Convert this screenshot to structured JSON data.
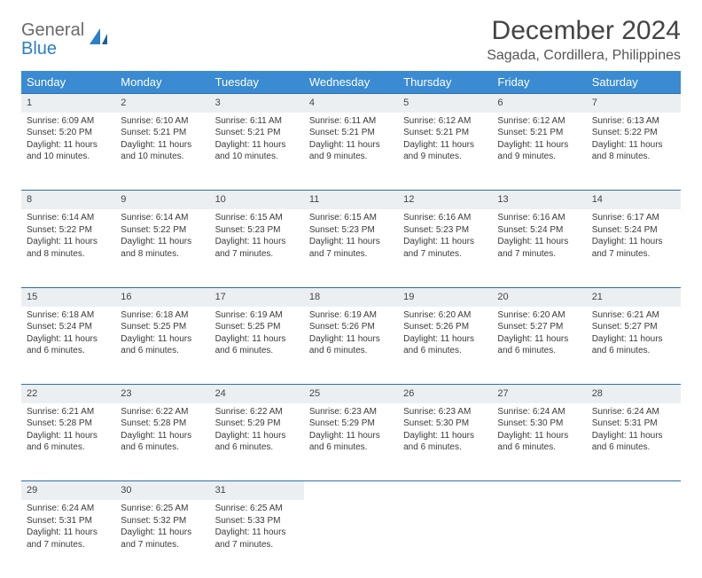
{
  "brand": {
    "word1": "General",
    "word2": "Blue"
  },
  "title": "December 2024",
  "location": "Sagada, Cordillera, Philippines",
  "colors": {
    "header_bg": "#3a8bd1",
    "header_text": "#ffffff",
    "row_border": "#2f6fa7",
    "daynum_bg": "#eceff2",
    "text": "#333333",
    "logo_gray": "#6a6a6a",
    "logo_blue": "#2a7fc9"
  },
  "dayHeaders": [
    "Sunday",
    "Monday",
    "Tuesday",
    "Wednesday",
    "Thursday",
    "Friday",
    "Saturday"
  ],
  "weeks": [
    [
      {
        "n": "1",
        "sr": "6:09 AM",
        "ss": "5:20 PM",
        "dl": "11 hours and 10 minutes."
      },
      {
        "n": "2",
        "sr": "6:10 AM",
        "ss": "5:21 PM",
        "dl": "11 hours and 10 minutes."
      },
      {
        "n": "3",
        "sr": "6:11 AM",
        "ss": "5:21 PM",
        "dl": "11 hours and 10 minutes."
      },
      {
        "n": "4",
        "sr": "6:11 AM",
        "ss": "5:21 PM",
        "dl": "11 hours and 9 minutes."
      },
      {
        "n": "5",
        "sr": "6:12 AM",
        "ss": "5:21 PM",
        "dl": "11 hours and 9 minutes."
      },
      {
        "n": "6",
        "sr": "6:12 AM",
        "ss": "5:21 PM",
        "dl": "11 hours and 9 minutes."
      },
      {
        "n": "7",
        "sr": "6:13 AM",
        "ss": "5:22 PM",
        "dl": "11 hours and 8 minutes."
      }
    ],
    [
      {
        "n": "8",
        "sr": "6:14 AM",
        "ss": "5:22 PM",
        "dl": "11 hours and 8 minutes."
      },
      {
        "n": "9",
        "sr": "6:14 AM",
        "ss": "5:22 PM",
        "dl": "11 hours and 8 minutes."
      },
      {
        "n": "10",
        "sr": "6:15 AM",
        "ss": "5:23 PM",
        "dl": "11 hours and 7 minutes."
      },
      {
        "n": "11",
        "sr": "6:15 AM",
        "ss": "5:23 PM",
        "dl": "11 hours and 7 minutes."
      },
      {
        "n": "12",
        "sr": "6:16 AM",
        "ss": "5:23 PM",
        "dl": "11 hours and 7 minutes."
      },
      {
        "n": "13",
        "sr": "6:16 AM",
        "ss": "5:24 PM",
        "dl": "11 hours and 7 minutes."
      },
      {
        "n": "14",
        "sr": "6:17 AM",
        "ss": "5:24 PM",
        "dl": "11 hours and 7 minutes."
      }
    ],
    [
      {
        "n": "15",
        "sr": "6:18 AM",
        "ss": "5:24 PM",
        "dl": "11 hours and 6 minutes."
      },
      {
        "n": "16",
        "sr": "6:18 AM",
        "ss": "5:25 PM",
        "dl": "11 hours and 6 minutes."
      },
      {
        "n": "17",
        "sr": "6:19 AM",
        "ss": "5:25 PM",
        "dl": "11 hours and 6 minutes."
      },
      {
        "n": "18",
        "sr": "6:19 AM",
        "ss": "5:26 PM",
        "dl": "11 hours and 6 minutes."
      },
      {
        "n": "19",
        "sr": "6:20 AM",
        "ss": "5:26 PM",
        "dl": "11 hours and 6 minutes."
      },
      {
        "n": "20",
        "sr": "6:20 AM",
        "ss": "5:27 PM",
        "dl": "11 hours and 6 minutes."
      },
      {
        "n": "21",
        "sr": "6:21 AM",
        "ss": "5:27 PM",
        "dl": "11 hours and 6 minutes."
      }
    ],
    [
      {
        "n": "22",
        "sr": "6:21 AM",
        "ss": "5:28 PM",
        "dl": "11 hours and 6 minutes."
      },
      {
        "n": "23",
        "sr": "6:22 AM",
        "ss": "5:28 PM",
        "dl": "11 hours and 6 minutes."
      },
      {
        "n": "24",
        "sr": "6:22 AM",
        "ss": "5:29 PM",
        "dl": "11 hours and 6 minutes."
      },
      {
        "n": "25",
        "sr": "6:23 AM",
        "ss": "5:29 PM",
        "dl": "11 hours and 6 minutes."
      },
      {
        "n": "26",
        "sr": "6:23 AM",
        "ss": "5:30 PM",
        "dl": "11 hours and 6 minutes."
      },
      {
        "n": "27",
        "sr": "6:24 AM",
        "ss": "5:30 PM",
        "dl": "11 hours and 6 minutes."
      },
      {
        "n": "28",
        "sr": "6:24 AM",
        "ss": "5:31 PM",
        "dl": "11 hours and 6 minutes."
      }
    ],
    [
      {
        "n": "29",
        "sr": "6:24 AM",
        "ss": "5:31 PM",
        "dl": "11 hours and 7 minutes."
      },
      {
        "n": "30",
        "sr": "6:25 AM",
        "ss": "5:32 PM",
        "dl": "11 hours and 7 minutes."
      },
      {
        "n": "31",
        "sr": "6:25 AM",
        "ss": "5:33 PM",
        "dl": "11 hours and 7 minutes."
      },
      null,
      null,
      null,
      null
    ]
  ],
  "labels": {
    "sunrise": "Sunrise:",
    "sunset": "Sunset:",
    "daylight": "Daylight:"
  }
}
